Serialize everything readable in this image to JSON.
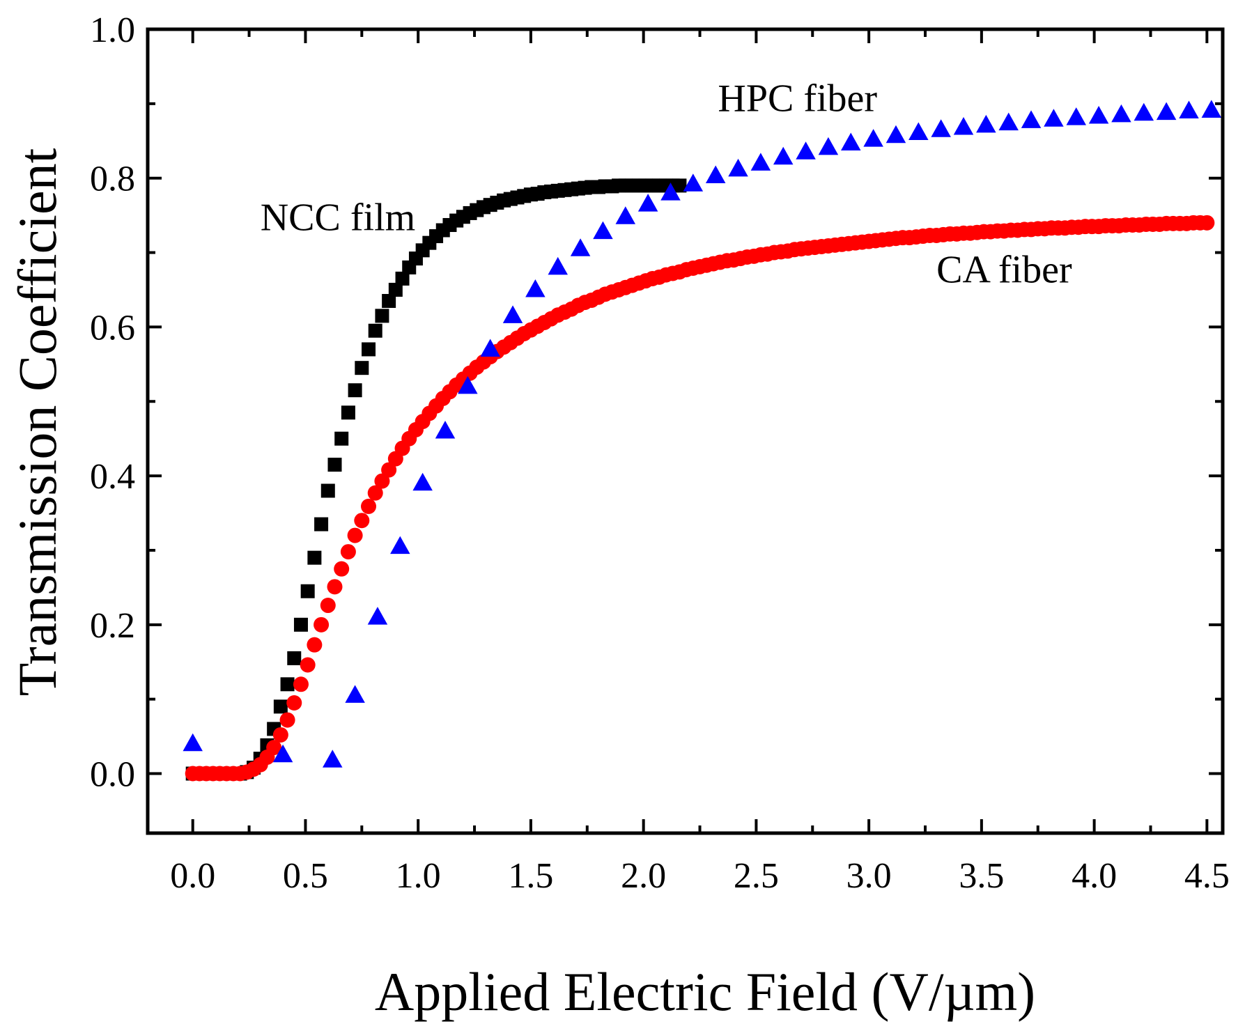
{
  "chart_data": {
    "type": "scatter",
    "title": "",
    "xlabel": "Applied Electric Field (V/µm)",
    "ylabel": "Transmission Coefficient",
    "xlim": [
      -0.2,
      4.57
    ],
    "ylim": [
      -0.08,
      1.0
    ],
    "xticks": [
      0.0,
      0.5,
      1.0,
      1.5,
      2.0,
      2.5,
      3.0,
      3.5,
      4.0,
      4.5
    ],
    "xtick_labels": [
      "0.0",
      "0.5",
      "1.0",
      "1.5",
      "2.0",
      "2.5",
      "3.0",
      "3.5",
      "4.0",
      "4.5"
    ],
    "yticks": [
      0.0,
      0.2,
      0.4,
      0.6,
      0.8,
      1.0
    ],
    "ytick_labels": [
      "0.0",
      "0.2",
      "0.4",
      "0.6",
      "0.8",
      "1.0"
    ],
    "grid": false,
    "legend": "none",
    "annotations": [
      {
        "text": "NCC film",
        "x": 0.3,
        "y": 0.73
      },
      {
        "text": "HPC fiber",
        "x": 2.33,
        "y": 0.89
      },
      {
        "text": "CA fiber",
        "x": 3.3,
        "y": 0.66
      }
    ],
    "series": [
      {
        "name": "NCC film",
        "marker": "square",
        "color": "#000000",
        "x": [
          0.0,
          0.03,
          0.06,
          0.09,
          0.12,
          0.15,
          0.18,
          0.21,
          0.24,
          0.27,
          0.3,
          0.33,
          0.36,
          0.39,
          0.42,
          0.45,
          0.48,
          0.51,
          0.54,
          0.57,
          0.6,
          0.63,
          0.66,
          0.69,
          0.72,
          0.75,
          0.78,
          0.81,
          0.84,
          0.87,
          0.9,
          0.93,
          0.96,
          0.99,
          1.02,
          1.05,
          1.08,
          1.11,
          1.14,
          1.17,
          1.2,
          1.23,
          1.26,
          1.29,
          1.32,
          1.35,
          1.38,
          1.41,
          1.44,
          1.47,
          1.5,
          1.53,
          1.56,
          1.59,
          1.62,
          1.65,
          1.68,
          1.71,
          1.74,
          1.77,
          1.8,
          1.83,
          1.86,
          1.89,
          1.92,
          1.95,
          1.98,
          2.01,
          2.04,
          2.07,
          2.1,
          2.13,
          2.16
        ],
        "y": [
          0.0,
          0.0,
          0.0,
          0.0,
          0.0,
          0.0,
          0.0,
          0.0,
          0.002,
          0.008,
          0.02,
          0.038,
          0.06,
          0.09,
          0.12,
          0.155,
          0.2,
          0.245,
          0.29,
          0.335,
          0.38,
          0.415,
          0.45,
          0.485,
          0.515,
          0.545,
          0.57,
          0.595,
          0.615,
          0.635,
          0.65,
          0.665,
          0.68,
          0.692,
          0.703,
          0.713,
          0.722,
          0.73,
          0.737,
          0.743,
          0.748,
          0.753,
          0.757,
          0.761,
          0.764,
          0.767,
          0.77,
          0.772,
          0.774,
          0.776,
          0.778,
          0.779,
          0.781,
          0.782,
          0.783,
          0.784,
          0.785,
          0.786,
          0.787,
          0.788,
          0.788,
          0.789,
          0.789,
          0.79,
          0.79,
          0.79,
          0.79,
          0.79,
          0.79,
          0.79,
          0.79,
          0.79,
          0.79
        ]
      },
      {
        "name": "CA fiber",
        "marker": "circle",
        "color": "#ff0000",
        "x": [
          0.0,
          0.03,
          0.06,
          0.09,
          0.12,
          0.15,
          0.18,
          0.21,
          0.24,
          0.27,
          0.3,
          0.33,
          0.36,
          0.39,
          0.42,
          0.45,
          0.48,
          0.51,
          0.54,
          0.57,
          0.6,
          0.63,
          0.66,
          0.69,
          0.72,
          0.75,
          0.78,
          0.81,
          0.84,
          0.87,
          0.9,
          0.93,
          0.96,
          0.99,
          1.02,
          1.05,
          1.08,
          1.11,
          1.14,
          1.17,
          1.2,
          1.23,
          1.26,
          1.29,
          1.32,
          1.35,
          1.38,
          1.41,
          1.44,
          1.47,
          1.5,
          1.53,
          1.56,
          1.59,
          1.62,
          1.65,
          1.68,
          1.71,
          1.74,
          1.77,
          1.8,
          1.83,
          1.86,
          1.89,
          1.92,
          1.95,
          1.98,
          2.01,
          2.04,
          2.07,
          2.1,
          2.13,
          2.16,
          2.19,
          2.22,
          2.25,
          2.28,
          2.31,
          2.34,
          2.37,
          2.4,
          2.43,
          2.46,
          2.49,
          2.52,
          2.55,
          2.58,
          2.61,
          2.64,
          2.67,
          2.7,
          2.73,
          2.76,
          2.79,
          2.82,
          2.85,
          2.88,
          2.91,
          2.94,
          2.97,
          3.0,
          3.03,
          3.06,
          3.09,
          3.12,
          3.15,
          3.18,
          3.21,
          3.24,
          3.27,
          3.3,
          3.33,
          3.36,
          3.39,
          3.42,
          3.45,
          3.48,
          3.51,
          3.54,
          3.57,
          3.6,
          3.63,
          3.66,
          3.69,
          3.72,
          3.75,
          3.78,
          3.81,
          3.84,
          3.87,
          3.9,
          3.93,
          3.96,
          3.99,
          4.02,
          4.05,
          4.08,
          4.11,
          4.14,
          4.17,
          4.2,
          4.23,
          4.26,
          4.29,
          4.32,
          4.35,
          4.38,
          4.41,
          4.44,
          4.47,
          4.5
        ],
        "y": [
          0.0,
          0.0,
          0.0,
          0.0,
          0.0,
          0.0,
          0.0,
          0.0,
          0.002,
          0.006,
          0.012,
          0.022,
          0.035,
          0.052,
          0.072,
          0.095,
          0.12,
          0.146,
          0.173,
          0.2,
          0.226,
          0.251,
          0.275,
          0.298,
          0.32,
          0.34,
          0.359,
          0.377,
          0.393,
          0.408,
          0.423,
          0.437,
          0.45,
          0.462,
          0.473,
          0.484,
          0.494,
          0.504,
          0.513,
          0.522,
          0.53,
          0.538,
          0.546,
          0.553,
          0.56,
          0.567,
          0.573,
          0.579,
          0.585,
          0.591,
          0.596,
          0.601,
          0.606,
          0.611,
          0.616,
          0.62,
          0.624,
          0.629,
          0.633,
          0.636,
          0.64,
          0.644,
          0.647,
          0.65,
          0.653,
          0.656,
          0.659,
          0.662,
          0.665,
          0.667,
          0.67,
          0.672,
          0.674,
          0.677,
          0.679,
          0.681,
          0.683,
          0.685,
          0.687,
          0.689,
          0.69,
          0.692,
          0.694,
          0.695,
          0.697,
          0.698,
          0.7,
          0.701,
          0.702,
          0.704,
          0.705,
          0.706,
          0.707,
          0.708,
          0.709,
          0.71,
          0.711,
          0.712,
          0.713,
          0.714,
          0.715,
          0.716,
          0.717,
          0.718,
          0.719,
          0.72,
          0.72,
          0.721,
          0.722,
          0.723,
          0.723,
          0.724,
          0.725,
          0.725,
          0.726,
          0.726,
          0.727,
          0.728,
          0.728,
          0.729,
          0.729,
          0.73,
          0.73,
          0.731,
          0.731,
          0.732,
          0.732,
          0.733,
          0.733,
          0.733,
          0.734,
          0.734,
          0.735,
          0.735,
          0.735,
          0.736,
          0.736,
          0.736,
          0.737,
          0.737,
          0.737,
          0.738,
          0.738,
          0.738,
          0.739,
          0.739,
          0.739,
          0.739,
          0.74,
          0.74,
          0.74
        ]
      },
      {
        "name": "HPC fiber",
        "marker": "triangle",
        "color": "#0000ff",
        "x": [
          0.0,
          0.4,
          0.62,
          0.72,
          0.82,
          0.92,
          1.02,
          1.12,
          1.22,
          1.32,
          1.42,
          1.52,
          1.62,
          1.72,
          1.82,
          1.92,
          2.02,
          2.12,
          2.22,
          2.32,
          2.42,
          2.52,
          2.62,
          2.72,
          2.82,
          2.92,
          3.02,
          3.12,
          3.22,
          3.32,
          3.42,
          3.52,
          3.62,
          3.72,
          3.82,
          3.92,
          4.02,
          4.12,
          4.22,
          4.32,
          4.42,
          4.52
        ],
        "y": [
          0.04,
          0.025,
          0.018,
          0.105,
          0.21,
          0.305,
          0.39,
          0.46,
          0.52,
          0.57,
          0.615,
          0.65,
          0.68,
          0.705,
          0.728,
          0.748,
          0.765,
          0.78,
          0.792,
          0.803,
          0.812,
          0.82,
          0.828,
          0.835,
          0.841,
          0.847,
          0.852,
          0.857,
          0.861,
          0.865,
          0.868,
          0.871,
          0.874,
          0.877,
          0.879,
          0.881,
          0.883,
          0.885,
          0.887,
          0.888,
          0.89,
          0.891
        ]
      }
    ]
  }
}
